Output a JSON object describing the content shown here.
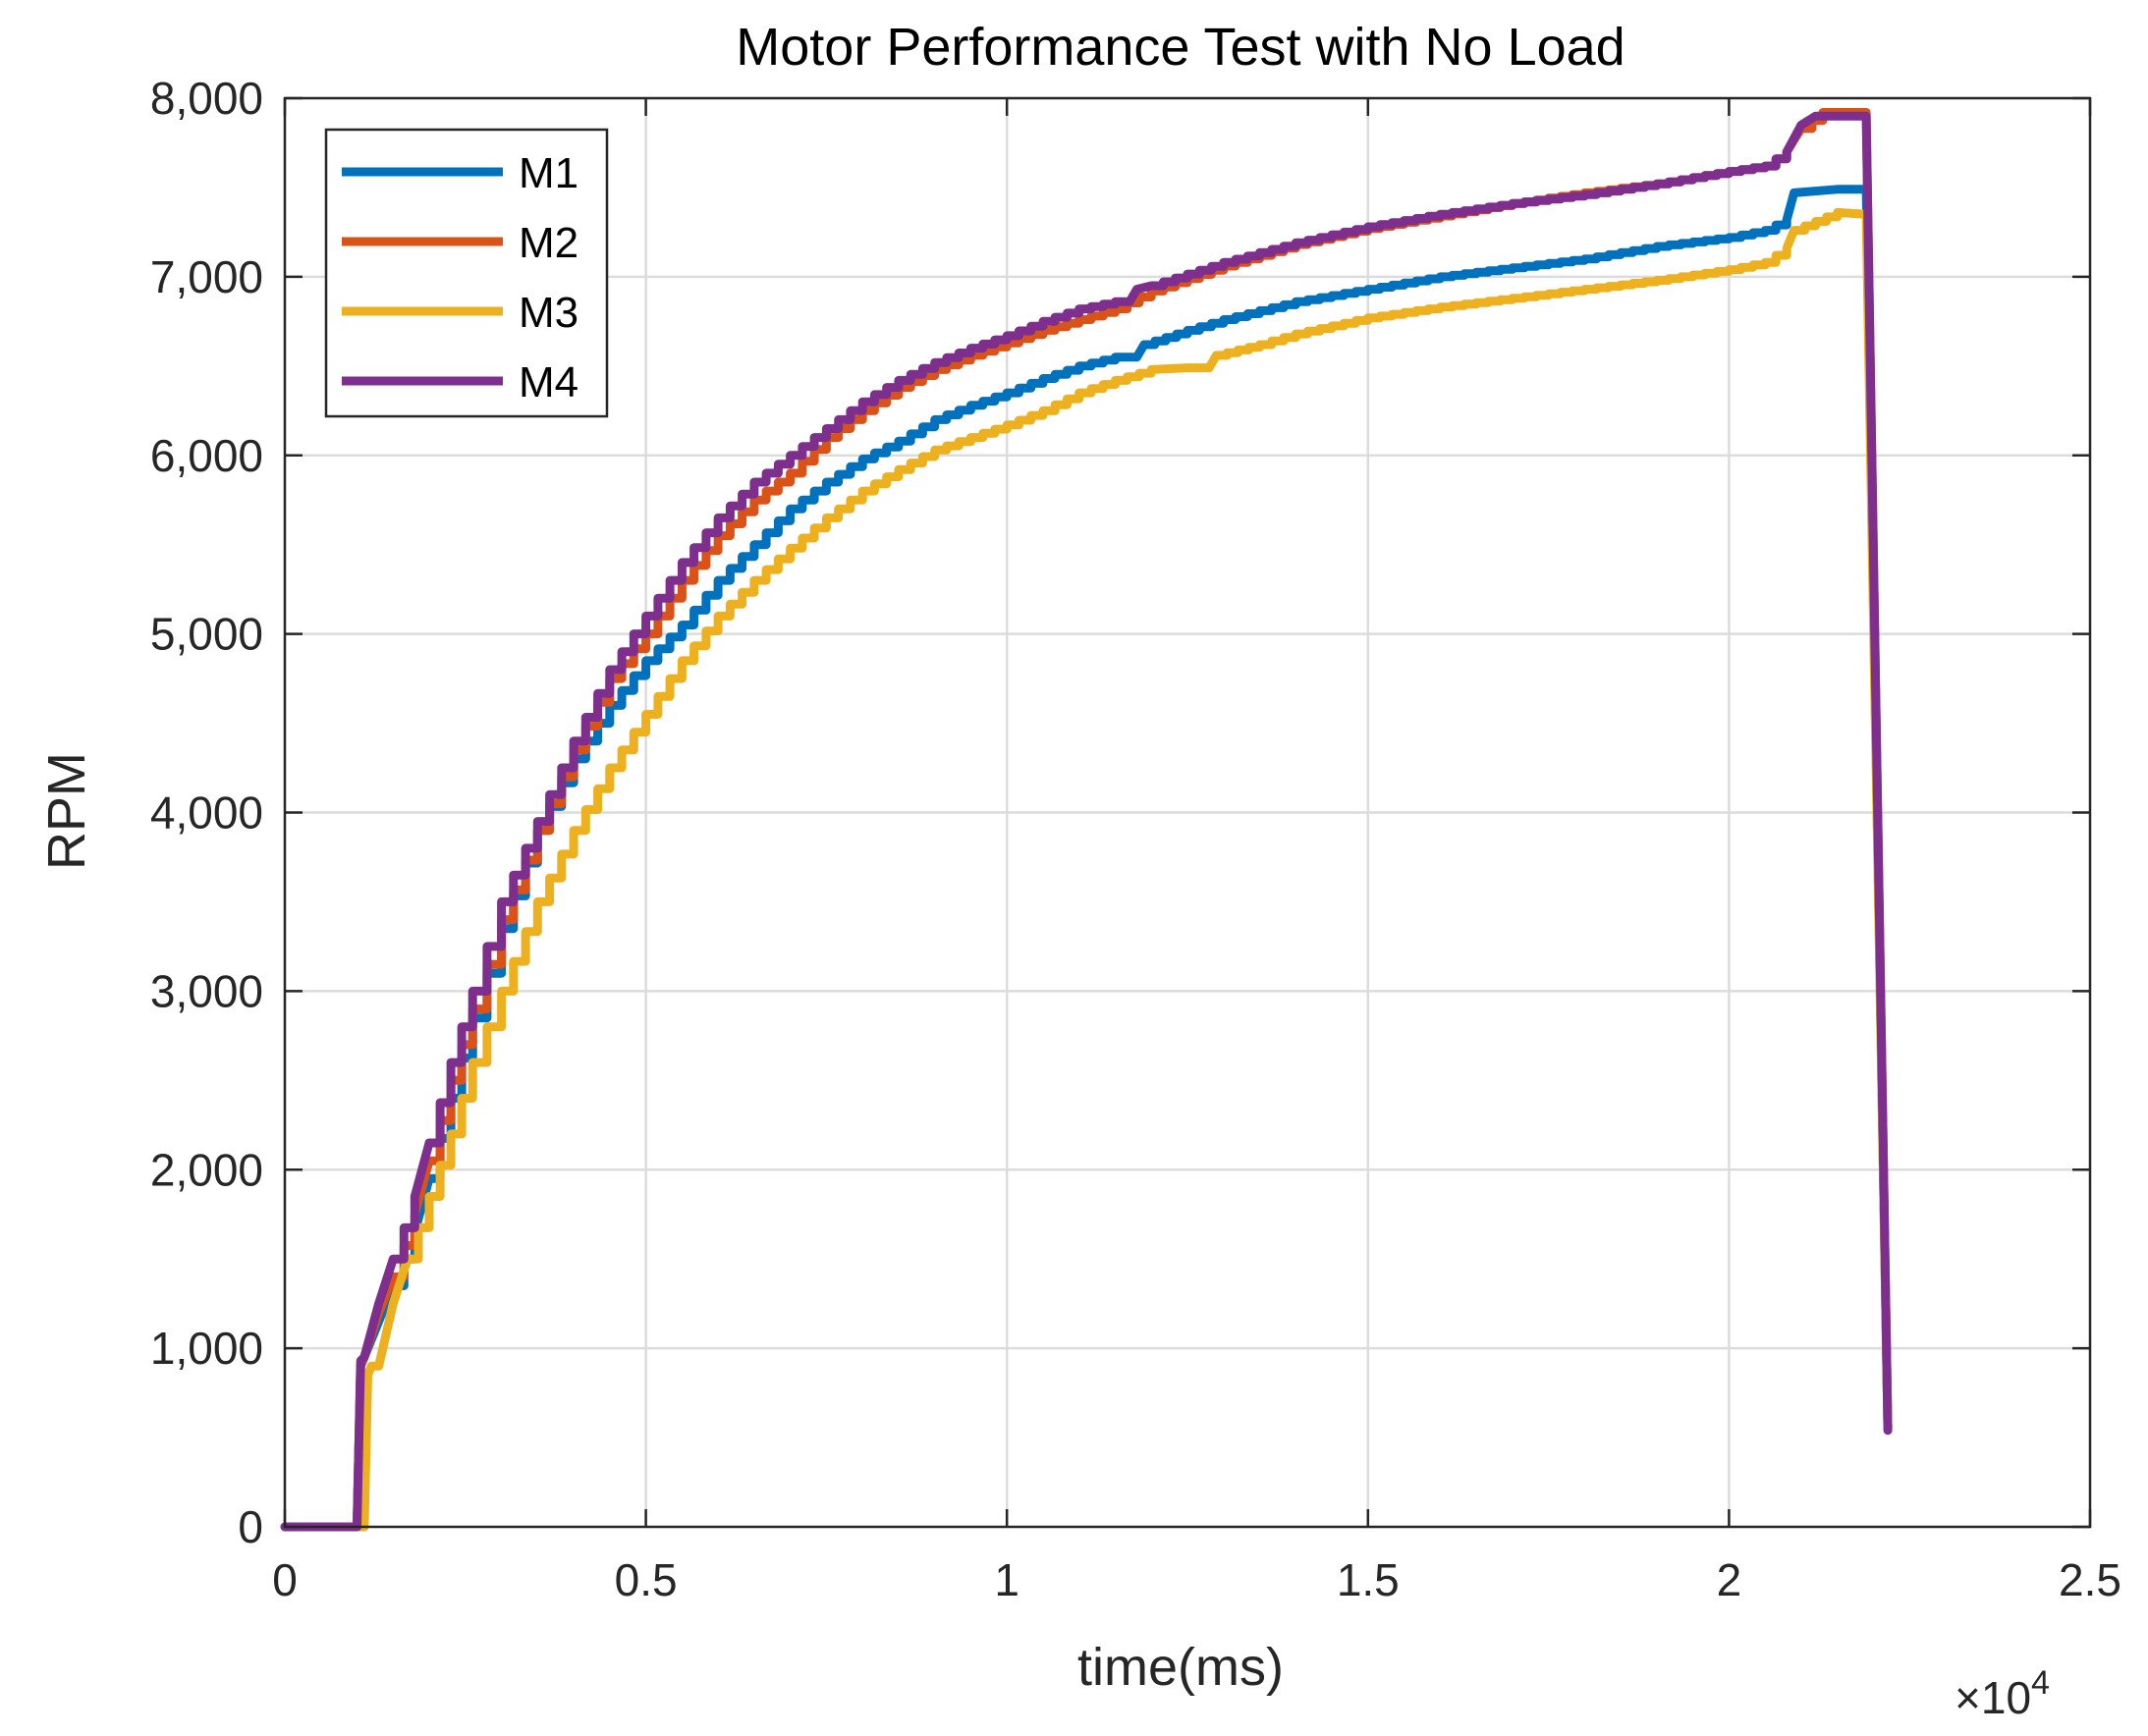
{
  "chart_data": {
    "type": "line",
    "title": "Motor Performance Test with No Load",
    "xlabel": "time(ms)",
    "ylabel": "RPM",
    "xlim": [
      0,
      25000
    ],
    "ylim": [
      0,
      8000
    ],
    "x_exponent_label": "×10",
    "x_exponent_power": "4",
    "x_ticks": [
      0,
      5000,
      10000,
      15000,
      20000,
      25000
    ],
    "x_tick_labels": [
      "0",
      "0.5",
      "1",
      "1.5",
      "2",
      "2.5"
    ],
    "y_ticks": [
      0,
      1000,
      2000,
      3000,
      4000,
      5000,
      6000,
      7000,
      8000
    ],
    "y_tick_labels": [
      "0",
      "1,000",
      "2,000",
      "3,000",
      "4,000",
      "5,000",
      "6,000",
      "7,000",
      "8,000"
    ],
    "grid": true,
    "legend_position": "top-left",
    "series": [
      {
        "name": "M1",
        "color": "#0072BD",
        "x": [
          0,
          1000,
          1050,
          1100,
          1300,
          1500,
          1800,
          2000,
          2300,
          2600,
          3000,
          3500,
          4000,
          4500,
          5000,
          5500,
          6000,
          6500,
          7000,
          7500,
          8000,
          8500,
          9000,
          9500,
          10000,
          10500,
          11000,
          11500,
          11800,
          11900,
          12500,
          13000,
          14000,
          15000,
          16000,
          17000,
          18000,
          19000,
          20000,
          20500,
          20800,
          20900,
          21500,
          21900,
          22200
        ],
        "y": [
          0,
          0,
          900,
          950,
          1150,
          1350,
          1650,
          1950,
          2400,
          2850,
          3350,
          3900,
          4300,
          4600,
          4850,
          5050,
          5300,
          5500,
          5700,
          5850,
          5980,
          6080,
          6200,
          6280,
          6350,
          6430,
          6500,
          6550,
          6550,
          6620,
          6700,
          6760,
          6860,
          6930,
          7000,
          7050,
          7100,
          7170,
          7220,
          7260,
          7320,
          7470,
          7490,
          7490,
          550
        ]
      },
      {
        "name": "M2",
        "color": "#D95319",
        "x": [
          0,
          1000,
          1050,
          1100,
          1300,
          1500,
          1800,
          2000,
          2300,
          2600,
          3000,
          3500,
          4000,
          4500,
          5000,
          5500,
          6000,
          6500,
          7000,
          7500,
          8000,
          8500,
          9000,
          9500,
          10000,
          10500,
          11000,
          11500,
          12000,
          13000,
          14000,
          15000,
          16000,
          17000,
          18000,
          19000,
          20000,
          20500,
          20800,
          21000,
          21300,
          21900,
          22200
        ],
        "y": [
          0,
          0,
          900,
          950,
          1200,
          1400,
          1750,
          2050,
          2500,
          2900,
          3400,
          3900,
          4350,
          4750,
          5000,
          5300,
          5550,
          5750,
          5900,
          6100,
          6250,
          6380,
          6480,
          6560,
          6630,
          6700,
          6760,
          6820,
          6920,
          7060,
          7180,
          7270,
          7340,
          7410,
          7470,
          7520,
          7590,
          7620,
          7700,
          7830,
          7920,
          7920,
          560
        ]
      },
      {
        "name": "M3",
        "color": "#EDB120",
        "x": [
          0,
          1100,
          1150,
          1200,
          1300,
          1500,
          1700,
          2000,
          2300,
          2600,
          3000,
          3500,
          4000,
          4500,
          5000,
          5500,
          6000,
          6500,
          7000,
          7500,
          8000,
          8500,
          9000,
          9500,
          10000,
          10500,
          11000,
          11500,
          12000,
          12500,
          12800,
          12900,
          13500,
          14000,
          15000,
          16000,
          17000,
          18000,
          19000,
          20000,
          20500,
          20800,
          20900,
          21500,
          21900,
          22200
        ],
        "y": [
          0,
          0,
          850,
          900,
          900,
          1250,
          1500,
          1850,
          2200,
          2600,
          3000,
          3500,
          3900,
          4250,
          4550,
          4850,
          5100,
          5300,
          5480,
          5650,
          5800,
          5920,
          6030,
          6100,
          6170,
          6250,
          6350,
          6420,
          6480,
          6490,
          6490,
          6560,
          6620,
          6680,
          6770,
          6830,
          6880,
          6930,
          6980,
          7040,
          7080,
          7160,
          7260,
          7360,
          7350,
          560
        ]
      },
      {
        "name": "M4",
        "color": "#7E2F8E",
        "x": [
          0,
          1000,
          1050,
          1100,
          1300,
          1500,
          1800,
          2000,
          2300,
          2600,
          3000,
          3500,
          4000,
          4500,
          5000,
          5500,
          6000,
          6500,
          7000,
          7500,
          8000,
          8500,
          9000,
          9500,
          10000,
          10500,
          11000,
          11500,
          11700,
          11800,
          12000,
          13000,
          14000,
          15000,
          16000,
          17000,
          18000,
          19000,
          20000,
          20500,
          20800,
          21000,
          21200,
          21900,
          22200
        ],
        "y": [
          0,
          0,
          930,
          950,
          1250,
          1500,
          1850,
          2150,
          2600,
          3000,
          3500,
          3950,
          4400,
          4800,
          5100,
          5400,
          5650,
          5850,
          6000,
          6150,
          6300,
          6420,
          6520,
          6600,
          6670,
          6750,
          6820,
          6860,
          6860,
          6930,
          6950,
          7080,
          7190,
          7280,
          7350,
          7410,
          7460,
          7520,
          7590,
          7620,
          7700,
          7850,
          7900,
          7900,
          540
        ]
      }
    ]
  }
}
